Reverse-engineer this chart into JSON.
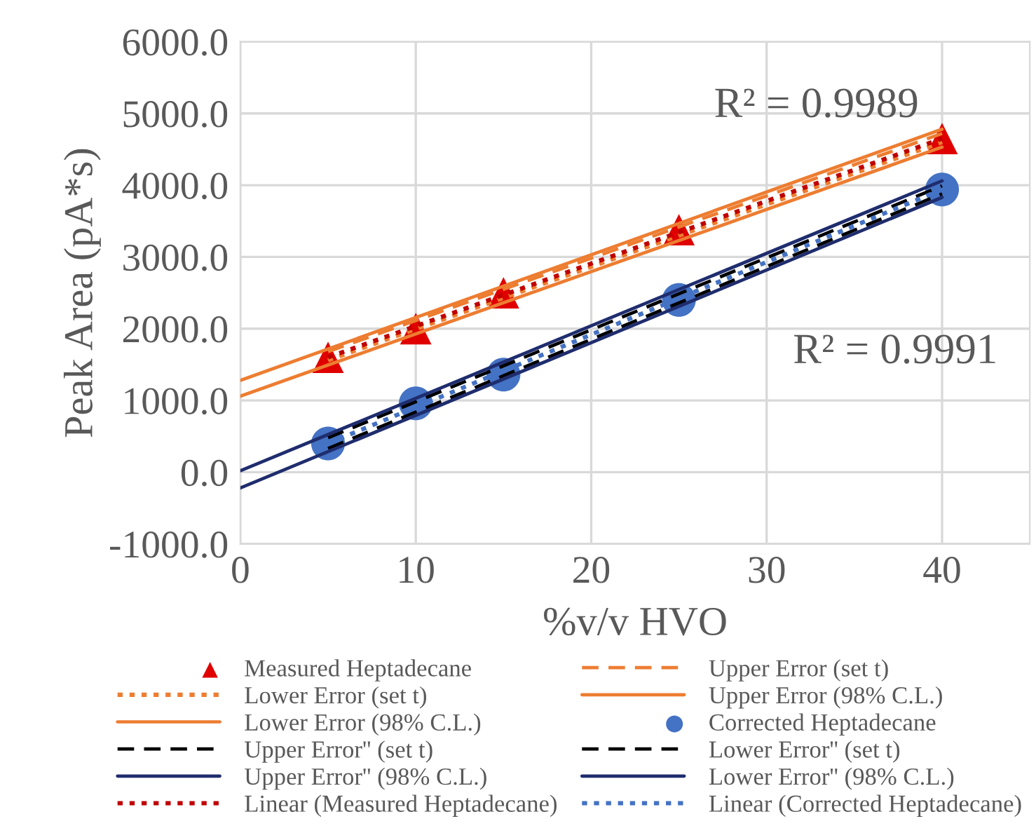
{
  "chart_data": {
    "type": "scatter",
    "xlabel": "%v/v HVO",
    "ylabel": "Peak Area (pA*s)",
    "xlim": [
      0,
      45
    ],
    "xticks": [
      0,
      10,
      20,
      30,
      40
    ],
    "ylim": [
      -1000,
      6000
    ],
    "yticks": [
      {
        "value": -1000,
        "label": "-1000.0"
      },
      {
        "value": 0,
        "label": "0.0"
      },
      {
        "value": 1000,
        "label": "1000.0"
      },
      {
        "value": 2000,
        "label": "2000.0"
      },
      {
        "value": 3000,
        "label": "3000.0"
      },
      {
        "value": 4000,
        "label": "4000.0"
      },
      {
        "value": 5000,
        "label": "5000.0"
      },
      {
        "value": 6000,
        "label": "6000.0"
      }
    ],
    "grid": true,
    "legend": "bottom",
    "annotations": [
      "R² = 0.9989",
      "R² = 0.9991"
    ],
    "series": [
      {
        "name": "Measured Heptadecane",
        "marker": "triangle",
        "color": "#e00000",
        "x": [
          5,
          10,
          15,
          25,
          40
        ],
        "values": [
          1600,
          2000,
          2500,
          3380,
          4650
        ]
      },
      {
        "name": "Upper Error (set t)",
        "type": "line",
        "line_style": "dashed",
        "color": "#ed7d31",
        "x": [
          5,
          40
        ],
        "values": [
          1680,
          4720
        ]
      },
      {
        "name": "Lower Error (set t)",
        "type": "line",
        "line_style": "dotted",
        "color": "#ed7d31",
        "x": [
          5,
          40
        ],
        "values": [
          1560,
          4600
        ]
      },
      {
        "name": "Upper Error (98% C.L.)",
        "type": "line",
        "line_style": "solid",
        "color": "#ed7d31",
        "x": [
          0,
          40
        ],
        "values": [
          1280,
          4780
        ]
      },
      {
        "name": "Lower Error (98% C.L.)",
        "type": "line",
        "line_style": "solid",
        "color": "#ed7d31",
        "x": [
          0,
          40
        ],
        "values": [
          1060,
          4530
        ]
      },
      {
        "name": "Corrected Heptadecane",
        "marker": "circle",
        "color": "#4472c4",
        "x": [
          5,
          10,
          15,
          25,
          40
        ],
        "values": [
          400,
          960,
          1360,
          2400,
          3940
        ]
      },
      {
        "name": "Upper Error'' (set t)",
        "type": "line",
        "line_style": "dashed",
        "color": "#000000",
        "x": [
          5,
          40
        ],
        "values": [
          480,
          3990
        ]
      },
      {
        "name": "Lower Error'' (set t)",
        "type": "line",
        "line_style": "dashed",
        "color": "#000000",
        "x": [
          5,
          40
        ],
        "values": [
          330,
          3880
        ]
      },
      {
        "name": "Upper Error'' (98% C.L.)",
        "type": "line",
        "line_style": "solid",
        "color": "#1f2d6e",
        "x": [
          0,
          40
        ],
        "values": [
          20,
          4060
        ]
      },
      {
        "name": "Lower Error'' (98% C.L.)",
        "type": "line",
        "line_style": "solid",
        "color": "#1f2d6e",
        "x": [
          0,
          40
        ],
        "values": [
          -220,
          3830
        ]
      },
      {
        "name": "Linear (Measured Heptadecane)",
        "type": "line",
        "line_style": "dotted",
        "color": "#c00000",
        "x": [
          5,
          40
        ],
        "values": [
          1600,
          4650
        ]
      },
      {
        "name": "Linear (Corrected Heptadecane)",
        "type": "line",
        "line_style": "dotted",
        "color": "#4472c4",
        "x": [
          5,
          40
        ],
        "values": [
          400,
          3940
        ]
      }
    ]
  }
}
